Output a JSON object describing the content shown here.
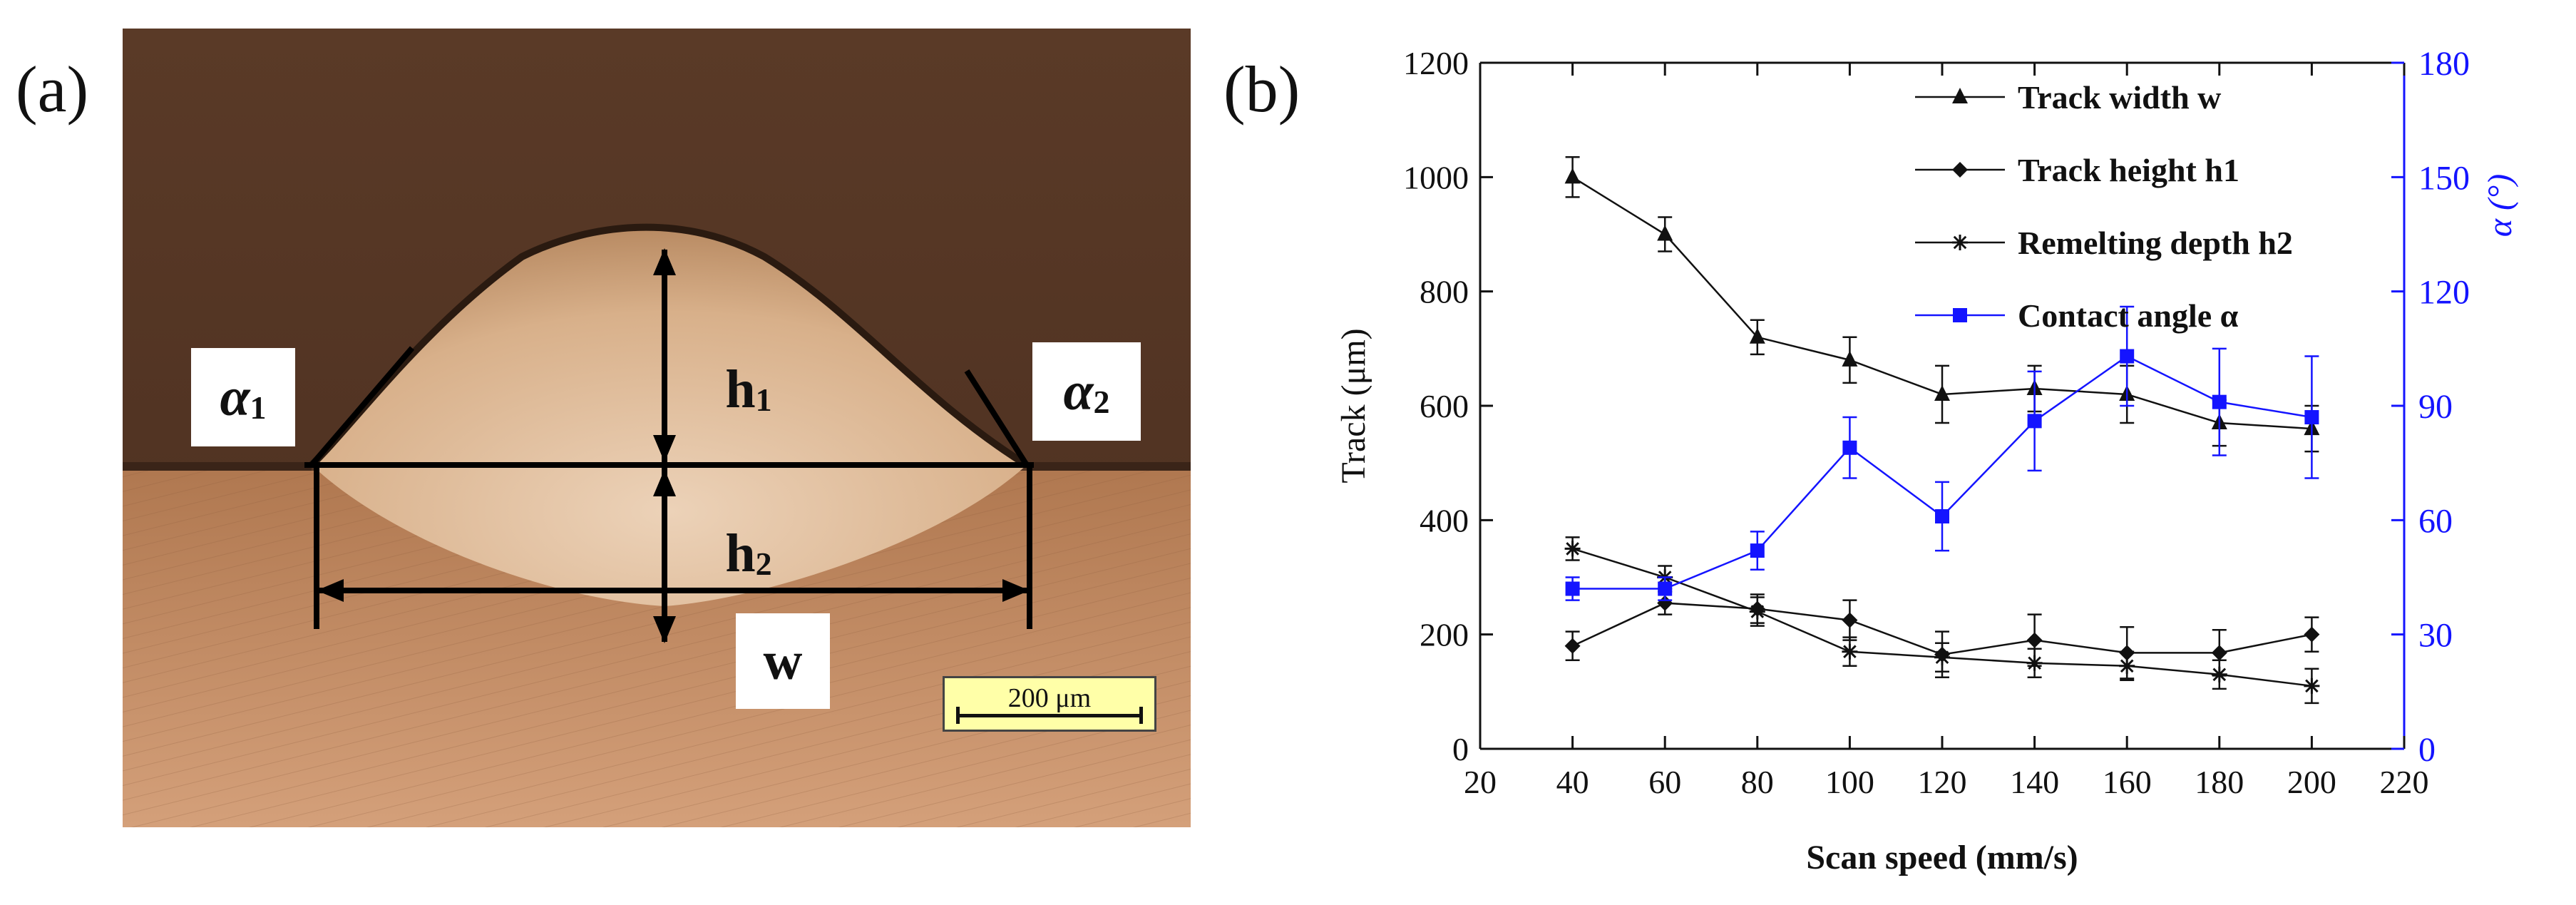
{
  "panel_a": {
    "letter": "(a)",
    "labels": {
      "alpha1": "α",
      "alpha1_sub": "1",
      "alpha2": "α",
      "alpha2_sub": "2",
      "h1": "h",
      "h1_sub": "1",
      "h2": "h",
      "h2_sub": "2",
      "w": "w"
    },
    "scalebar": "200 μm"
  },
  "panel_b": {
    "letter": "(b)"
  },
  "colors": {
    "black_series": "#111111",
    "blue_series": "#1414ff"
  },
  "chart_data": {
    "type": "line",
    "xlabel": "Scan speed (mm/s)",
    "ylabel_left": "Track (μm)",
    "ylabel_right": "α (°)",
    "xlim": [
      20,
      220
    ],
    "x_ticks": [
      20,
      40,
      60,
      80,
      100,
      120,
      140,
      160,
      180,
      200,
      220
    ],
    "ylim_left": [
      0,
      1200
    ],
    "y_ticks_left": [
      0,
      200,
      400,
      600,
      800,
      1000,
      1200
    ],
    "ylim_right": [
      0,
      180
    ],
    "y_ticks_right": [
      0,
      30,
      60,
      90,
      120,
      150,
      180
    ],
    "legend_position": "top-right",
    "x": [
      40,
      60,
      80,
      100,
      120,
      140,
      160,
      180,
      200
    ],
    "series": [
      {
        "name": "Track width w",
        "axis": "left",
        "marker": "triangle",
        "color": "#111111",
        "values": [
          1000,
          900,
          720,
          680,
          620,
          630,
          620,
          570,
          560
        ],
        "errors": [
          35,
          30,
          30,
          40,
          50,
          40,
          50,
          40,
          40
        ]
      },
      {
        "name": "Track height h1",
        "axis": "left",
        "marker": "diamond",
        "color": "#111111",
        "values": [
          180,
          255,
          245,
          225,
          165,
          190,
          168,
          168,
          200
        ],
        "errors": [
          25,
          20,
          25,
          35,
          40,
          45,
          45,
          40,
          30
        ]
      },
      {
        "name": "Remelting depth h2",
        "axis": "left",
        "marker": "star",
        "color": "#111111",
        "values": [
          350,
          300,
          240,
          170,
          160,
          150,
          145,
          130,
          110
        ],
        "errors": [
          20,
          20,
          25,
          25,
          25,
          25,
          25,
          25,
          30
        ]
      },
      {
        "name": "Contact angle α",
        "axis": "right",
        "marker": "square",
        "color": "#1414ff",
        "values": [
          42,
          42,
          52,
          79,
          61,
          86,
          103,
          91,
          87
        ],
        "errors": [
          3,
          3,
          5,
          8,
          9,
          13,
          13,
          14,
          16
        ]
      }
    ]
  }
}
